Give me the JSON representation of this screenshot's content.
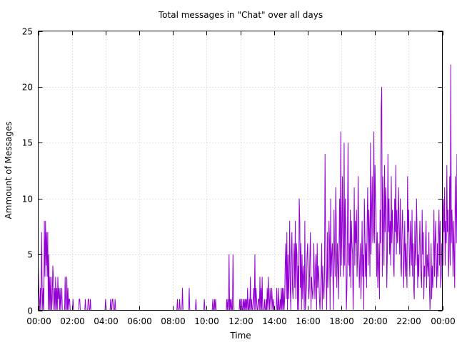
{
  "chart_data": {
    "type": "line",
    "title": "Total messages in \"Chat\" over all days",
    "xlabel": "Time",
    "ylabel": "Ammount of Messages",
    "x_ticks": [
      "00:00",
      "02:00",
      "04:00",
      "06:00",
      "08:00",
      "10:00",
      "12:00",
      "14:00",
      "16:00",
      "18:00",
      "20:00",
      "22:00",
      "00:00"
    ],
    "y_ticks": [
      "0",
      "5",
      "10",
      "15",
      "20",
      "25"
    ],
    "xlim_minutes": [
      0,
      1440
    ],
    "ylim": [
      0,
      25
    ],
    "grid": true,
    "series": [
      {
        "color": "#9400d3",
        "x_start": "00:00",
        "x_step_minutes": 2,
        "values": [
          4,
          2,
          1,
          0,
          2,
          0,
          7,
          2,
          0,
          2,
          0,
          8,
          3,
          8,
          4,
          7,
          3,
          7,
          0,
          5,
          0,
          3,
          0,
          3,
          0,
          1,
          4,
          3,
          0,
          2,
          0,
          3,
          0,
          2,
          0,
          3,
          1,
          2,
          0,
          2,
          0,
          1,
          2,
          0,
          0,
          0,
          0,
          0,
          3,
          0,
          0,
          3,
          0,
          2,
          0,
          1,
          1,
          0,
          0,
          0,
          0,
          0,
          1,
          0,
          0,
          0,
          0,
          0,
          0,
          0,
          0,
          0,
          0,
          1,
          1,
          0,
          0,
          0,
          0,
          0,
          0,
          0,
          0,
          0,
          1,
          0,
          0,
          0,
          0,
          1,
          1,
          0,
          0,
          1,
          0,
          0,
          0,
          0,
          0,
          0,
          0,
          0,
          0,
          0,
          0,
          0,
          0,
          0,
          0,
          0,
          0,
          0,
          0,
          0,
          0,
          0,
          0,
          0,
          0,
          0,
          1,
          0,
          0,
          0,
          0,
          0,
          0,
          0,
          0,
          1,
          0,
          0,
          1,
          1,
          0,
          0,
          0,
          1,
          0,
          0,
          0,
          0,
          0,
          0,
          0,
          0,
          0,
          0,
          0,
          0,
          0,
          0,
          0,
          0,
          0,
          0,
          0,
          0,
          0,
          0,
          0,
          0,
          0,
          0,
          0,
          0,
          0,
          0,
          0,
          0,
          0,
          0,
          0,
          0,
          0,
          0,
          0,
          0,
          0,
          0,
          0,
          0,
          0,
          0,
          0,
          0,
          0,
          0,
          0,
          0,
          0,
          0,
          0,
          0,
          0,
          0,
          0,
          0,
          0,
          0,
          0,
          0,
          0,
          0,
          0,
          0,
          0,
          0,
          0,
          0,
          0,
          0,
          0,
          0,
          0,
          0,
          0,
          0,
          0,
          0,
          0,
          0,
          0,
          0,
          0,
          0,
          0,
          0,
          0,
          0,
          0,
          0,
          0,
          0,
          0,
          0,
          0,
          0,
          0,
          0,
          0,
          0,
          0,
          0,
          0,
          0,
          0,
          0,
          1,
          0,
          0,
          0,
          1,
          0,
          0,
          0,
          0,
          2,
          0,
          0,
          0,
          0,
          0,
          0,
          0,
          0,
          0,
          0,
          0,
          2,
          0,
          0,
          0,
          0,
          0,
          0,
          0,
          0,
          0,
          0,
          0,
          1,
          0,
          0,
          0,
          0,
          0,
          0,
          0,
          0,
          0,
          0,
          0,
          0,
          0,
          0,
          1,
          0,
          0,
          0,
          0,
          0,
          0,
          0,
          0,
          0,
          0,
          0,
          0,
          0,
          0,
          1,
          0,
          0,
          1,
          0,
          1,
          0,
          0,
          0,
          0,
          0,
          0,
          0,
          0,
          0,
          0,
          0,
          0,
          0,
          0,
          0,
          0,
          0,
          0,
          0,
          1,
          0,
          1,
          0,
          5,
          0,
          1,
          0,
          1,
          0,
          0,
          5,
          1,
          0,
          0,
          0,
          0,
          0,
          0,
          0,
          0,
          0,
          0,
          1,
          0,
          1,
          1,
          0,
          0,
          1,
          0,
          1,
          0,
          1,
          0,
          1,
          0,
          2,
          0,
          0,
          1,
          0,
          3,
          0,
          1,
          0,
          0,
          1,
          2,
          0,
          5,
          0,
          2,
          1,
          0,
          0,
          1,
          1,
          0,
          3,
          0,
          2,
          0,
          3,
          0,
          0,
          0,
          1,
          0,
          0,
          1,
          0,
          2,
          0,
          3,
          1,
          0,
          2,
          1,
          0,
          2,
          1,
          0,
          1,
          0,
          0,
          0,
          0,
          0,
          2,
          0,
          0,
          2,
          0,
          0,
          1,
          0,
          2,
          0,
          2,
          0,
          2,
          0,
          1,
          4,
          6,
          1,
          7,
          0,
          5,
          1,
          3,
          8,
          2,
          0,
          5,
          7,
          2,
          1,
          4,
          6,
          2,
          8,
          1,
          6,
          5,
          0,
          4,
          0,
          10,
          8,
          2,
          6,
          0,
          5,
          1,
          4,
          3,
          0,
          8,
          0,
          1,
          2,
          5,
          6,
          3,
          1,
          2,
          5,
          7,
          0,
          3,
          2,
          1,
          2,
          6,
          3,
          1,
          4,
          5,
          0,
          6,
          2,
          4,
          3,
          1,
          0,
          2,
          3,
          6,
          0,
          4,
          2,
          1,
          3,
          14,
          6,
          3,
          0,
          7,
          2,
          4,
          8,
          6,
          0,
          10,
          3,
          5,
          6,
          3,
          0,
          9,
          5,
          3,
          11,
          8,
          2,
          6,
          4,
          1,
          6,
          10,
          3,
          16,
          4,
          7,
          12,
          5,
          3,
          15,
          4,
          10,
          7,
          0,
          2,
          8,
          15,
          4,
          6,
          3,
          9,
          2,
          8,
          6,
          5,
          0,
          3,
          11,
          4,
          8,
          6,
          9,
          3,
          5,
          12,
          7,
          2,
          4,
          6,
          1,
          4,
          8,
          3,
          5,
          0,
          10,
          7,
          3,
          6,
          2,
          8,
          11,
          4,
          9,
          7,
          3,
          15,
          5,
          9,
          12,
          6,
          7,
          16,
          6,
          13,
          10,
          8,
          3,
          7,
          2,
          4,
          6,
          1,
          9,
          6,
          18,
          20,
          3,
          12,
          8,
          4,
          13,
          7,
          11,
          9,
          2,
          5,
          14,
          7,
          10,
          5,
          8,
          4,
          12,
          6,
          9,
          7,
          4,
          3,
          10,
          7,
          13,
          5,
          9,
          6,
          8,
          11,
          7,
          5,
          10,
          4,
          3,
          7,
          9,
          6,
          2,
          5,
          8,
          3,
          6,
          4,
          2,
          12,
          7,
          9,
          5,
          3,
          8,
          6,
          4,
          9,
          3,
          6,
          2,
          1,
          8,
          5,
          4,
          10,
          7,
          2,
          5,
          3,
          6,
          8,
          4,
          3,
          2,
          9,
          5,
          7,
          1,
          4,
          3,
          6,
          8,
          2,
          5,
          4,
          3,
          7,
          2,
          0,
          3,
          6,
          1,
          4,
          2,
          5,
          9,
          3,
          6,
          8,
          4,
          2,
          6,
          3,
          7,
          9,
          4,
          8,
          2,
          3,
          6,
          5,
          4,
          10,
          7,
          11,
          4,
          8,
          6,
          13,
          7,
          9,
          3,
          5,
          12,
          4,
          22,
          6,
          9,
          7,
          3,
          8,
          5,
          2,
          12,
          9,
          6,
          14,
          4,
          10,
          7,
          15,
          3,
          17,
          5,
          11,
          8,
          2,
          6,
          9,
          4,
          7,
          3,
          12,
          6,
          8,
          5,
          11,
          21,
          4,
          18,
          9,
          7,
          2,
          12,
          8,
          5,
          14,
          3,
          9,
          6,
          10,
          4,
          7,
          11,
          3,
          8,
          2,
          6,
          16,
          4,
          12,
          7,
          9,
          3,
          14,
          5,
          10,
          8,
          2,
          6,
          11,
          4,
          7,
          1,
          9,
          5,
          8,
          0,
          13,
          2,
          8,
          14
        ]
      }
    ]
  }
}
